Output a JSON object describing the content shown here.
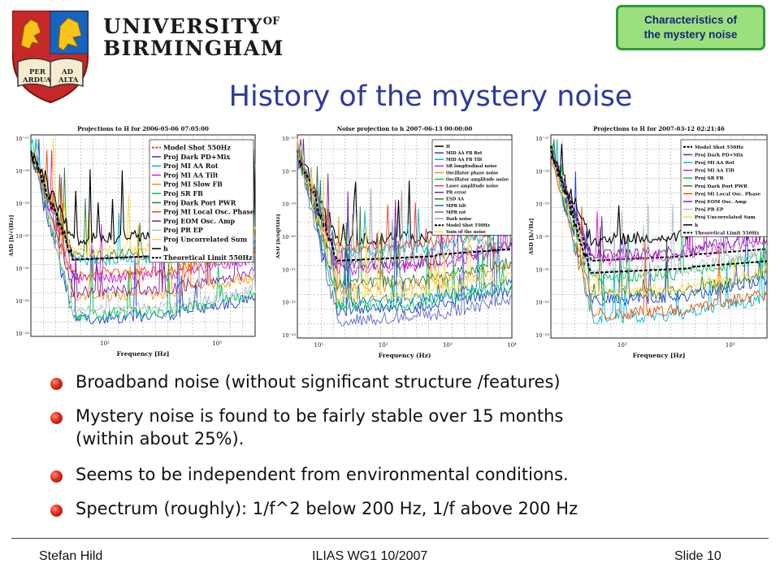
{
  "header": {
    "university_line1": "UNIVERSITY",
    "university_of": "OF",
    "university_line2": "BIRMINGHAM",
    "crest_text": [
      "PER",
      "AD",
      "ARDUA",
      "ALTA"
    ],
    "badge": "Characteristics of\nthe mystery noise"
  },
  "slide": {
    "title": "History of the mystery noise"
  },
  "plots": [
    {
      "title": "Projections to H for 2006-05-06 07:05:00",
      "ylabel": "ASD [h/√(Hz)]",
      "xlabel": "Frequency [Hz]",
      "yticks": [
        "10⁻¹⁷",
        "10⁻¹⁸",
        "10⁻¹⁹",
        "10⁻²⁰",
        "10⁻²¹",
        "10⁻²²",
        "10⁻²³"
      ],
      "xticks": [
        "10²",
        "10³"
      ],
      "legend": [
        {
          "label": "Model Shot 550Hz",
          "color": "#e53935",
          "dash": true
        },
        {
          "label": "Proj Dark PD+Mix",
          "color": "#1e3fd8",
          "dash": false
        },
        {
          "label": "Proj MI AA Rot",
          "color": "#00b8d4",
          "dash": false
        },
        {
          "label": "Proj MI AA Tilt",
          "color": "#d81bd8",
          "dash": false
        },
        {
          "label": "Proj MI Slow FB",
          "color": "#ff8f00",
          "dash": false
        },
        {
          "label": "Proj SR FB",
          "color": "#00c853",
          "dash": false
        },
        {
          "label": "Proj Dark Port PWR",
          "color": "#2e7d32",
          "dash": false
        },
        {
          "label": "Proj MI Local Osc. Phase",
          "color": "#e65100",
          "dash": false
        },
        {
          "label": "Proj EOM Osc. Amp",
          "color": "#7b1fa2",
          "dash": false
        },
        {
          "label": "Proj PR EP",
          "color": "#b0bec5",
          "dash": false
        },
        {
          "label": "Proj Uncorrelated Sum",
          "color": "#fdd835",
          "dash": false
        },
        {
          "label": "h",
          "color": "#000000",
          "dash": false
        },
        {
          "label": "Theoretical Limit 550Hz",
          "color": "#000000",
          "dash": true
        }
      ]
    },
    {
      "title": "Noise projection to h 2007-06-13 00:00:00",
      "ylabel": "ASD [h/sqrtHz]",
      "xlabel": "Frequency (Hz)",
      "yticks": [
        "10⁻¹⁷",
        "10⁻¹⁸",
        "10⁻¹⁹",
        "10⁻²⁰",
        "10⁻²¹",
        "10⁻²²",
        "10⁻²³"
      ],
      "xticks": [
        "10¹",
        "10²",
        "10³",
        "10⁴"
      ],
      "legend": [
        {
          "label": "H",
          "color": "#000000",
          "dash": false
        },
        {
          "label": "MID AA FB Rot",
          "color": "#1e3fd8",
          "dash": false
        },
        {
          "label": "MID AA FB Tilt",
          "color": "#00b8d4",
          "dash": false
        },
        {
          "label": "SR longitudinal noise",
          "color": "#d81bd8",
          "dash": false
        },
        {
          "label": "Oscillator phase noise",
          "color": "#ff8f00",
          "dash": false
        },
        {
          "label": "Oscillator amplitude noise",
          "color": "#00c853",
          "dash": false
        },
        {
          "label": "Laser amplitude noise",
          "color": "#e53935",
          "dash": false
        },
        {
          "label": "PR error",
          "color": "#7b1fa2",
          "dash": false
        },
        {
          "label": "ESD AA",
          "color": "#2e7d32",
          "dash": false
        },
        {
          "label": "MPR tilt",
          "color": "#0277bd",
          "dash": false
        },
        {
          "label": "MPR rot",
          "color": "#5c6bc0",
          "dash": false
        },
        {
          "label": "Dark noise",
          "color": "#9e9e9e",
          "dash": false
        },
        {
          "label": "Model Shot 550Hz",
          "color": "#000000",
          "dash": true
        },
        {
          "label": "Sum of the noise",
          "color": "#fdd835",
          "dash": false
        }
      ]
    },
    {
      "title": "Projections to H for 2007-03-12 02:21:46",
      "ylabel": "ASD [h/√Hz]",
      "xlabel": "Frequency [Hz]",
      "yticks": [
        "10⁻¹⁷",
        "10⁻¹⁸",
        "10⁻¹⁹",
        "10⁻²⁰",
        "10⁻²¹",
        "10⁻²²",
        "10⁻²³"
      ],
      "xticks": [
        "10²",
        "10³"
      ],
      "legend": [
        {
          "label": "Model Shot 550Hz",
          "color": "#000000",
          "dash": true
        },
        {
          "label": "Proj Dark PD+Mix",
          "color": "#1e3fd8",
          "dash": false
        },
        {
          "label": "Proj MI AA Rot",
          "color": "#00b8d4",
          "dash": false
        },
        {
          "label": "Proj MI AA Tilt",
          "color": "#d81bd8",
          "dash": false
        },
        {
          "label": "Proj SR FB",
          "color": "#00c853",
          "dash": false
        },
        {
          "label": "Proj Dark Port PWR",
          "color": "#2e7d32",
          "dash": false
        },
        {
          "label": "Proj MI Local Osc. Phase",
          "color": "#e65100",
          "dash": false
        },
        {
          "label": "Proj EOM Osc. Amp",
          "color": "#7b1fa2",
          "dash": false
        },
        {
          "label": "Proj PR EP",
          "color": "#b0bec5",
          "dash": false
        },
        {
          "label": "Proj Uncorrelated Sum",
          "color": "#fdd835",
          "dash": false
        },
        {
          "label": "h",
          "color": "#000000",
          "dash": false
        },
        {
          "label": "Theoretical Limit 550Hz",
          "color": "#000000",
          "dash": true
        }
      ]
    }
  ],
  "bullets": [
    "Broadband noise (without significant structure /features)",
    "Mystery noise is found to be fairly stable over 15 months",
    "(within about 25%).",
    "Seems to be independent from environmental conditions.",
    "Spectrum (roughly): 1/f^2 below 200 Hz, 1/f above 200 Hz"
  ],
  "footer": {
    "author": "Stefan Hild",
    "event": "ILIAS WG1 10/2007",
    "slide_number": "Slide 10"
  }
}
